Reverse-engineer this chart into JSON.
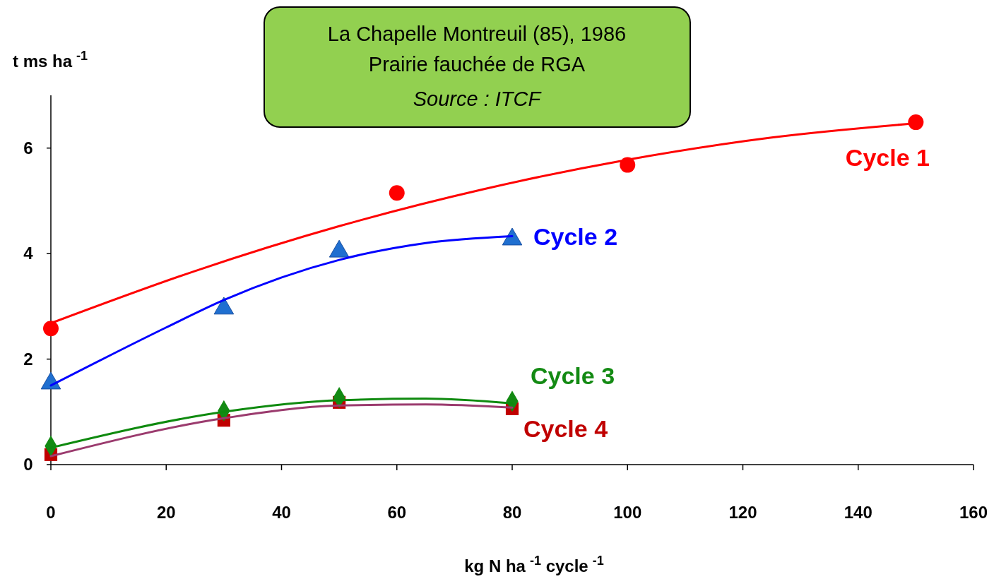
{
  "chart_data": {
    "type": "scatter",
    "title": "La Chapelle Montreuil (85), 1986",
    "subtitle": "Prairie fauchée de RGA",
    "annotations": [
      "Source : ITCF"
    ],
    "ylabel": "t ms ha$^{-1}$",
    "xlabel": "kg N ha$^{-1}$ cycle$^{-1}$",
    "xlim": [
      0,
      160
    ],
    "ylim": [
      0,
      7
    ],
    "xticks": [
      0,
      20,
      40,
      60,
      80,
      100,
      120,
      140,
      160
    ],
    "yticks": [
      0,
      2,
      4,
      6
    ],
    "grid": false,
    "series": [
      {
        "type": "line",
        "color": "#ff0000",
        "marker": "none",
        "x": [
          0,
          25,
          50,
          75,
          100,
          125,
          150
        ],
        "values": [
          2.68,
          3.67,
          4.52,
          5.22,
          5.78,
          6.2,
          6.47
        ]
      },
      {
        "type": "line",
        "color": "#0000ff",
        "marker": "none",
        "x": [
          0,
          20,
          30,
          50,
          65,
          80
        ],
        "values": [
          1.5,
          2.6,
          3.12,
          3.88,
          4.2,
          4.33
        ]
      },
      {
        "type": "line",
        "color": "#0f8a0f",
        "marker": "none",
        "x": [
          0,
          30,
          50,
          65,
          80
        ],
        "values": [
          0.32,
          1.0,
          1.22,
          1.25,
          1.16
        ]
      },
      {
        "type": "line",
        "color": "#9b3b6e",
        "marker": "none",
        "x": [
          0,
          30,
          50,
          65,
          80
        ],
        "values": [
          0.16,
          0.88,
          1.12,
          1.14,
          1.08
        ]
      },
      {
        "name": "Cycle 1",
        "color": "#ff0000",
        "marker": "circle",
        "x": [
          0,
          60,
          100,
          150
        ],
        "values": [
          2.58,
          5.15,
          5.68,
          6.49
        ]
      },
      {
        "name": "Cycle 2",
        "color": "#1f6fd0",
        "marker": "triangle",
        "x": [
          0,
          30,
          50,
          80
        ],
        "values": [
          1.54,
          2.96,
          4.04,
          4.27
        ]
      },
      {
        "name": "Cycle 3",
        "color": "#138a13",
        "marker": "diamond",
        "x": [
          0,
          30,
          50,
          80
        ],
        "values": [
          0.35,
          1.02,
          1.27,
          1.2
        ]
      },
      {
        "name": "Cycle 4",
        "color": "#c00000",
        "marker": "square",
        "x": [
          0,
          30,
          50,
          80
        ],
        "values": [
          0.19,
          0.84,
          1.18,
          1.06
        ]
      }
    ]
  }
}
